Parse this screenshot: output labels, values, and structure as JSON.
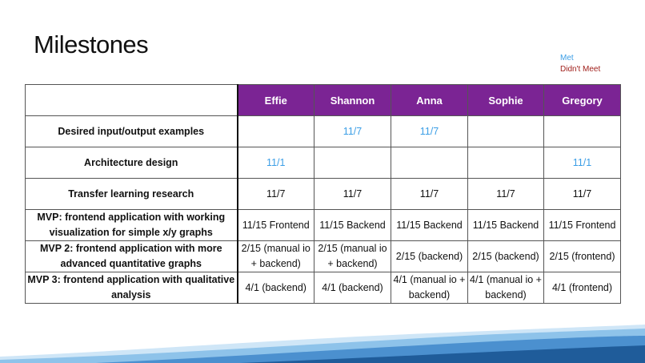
{
  "slide": {
    "title": "Milestones",
    "legend": {
      "met": "Met",
      "not_met": "Didn't Meet"
    }
  },
  "colors": {
    "header_bg": "#7b2494",
    "met": "#3b9ee6",
    "not_met": "#a0201c",
    "wave_dark": "#1f5c9a",
    "wave_light": "#8ec3ea"
  },
  "table": {
    "columns": [
      "Effie",
      "Shannon",
      "Anna",
      "Sophie",
      "Gregory"
    ],
    "rows": [
      {
        "label": "Desired input/output examples",
        "cells": [
          {
            "text": "",
            "status": "plain"
          },
          {
            "text": "11/7",
            "status": "met"
          },
          {
            "text": "11/7",
            "status": "met"
          },
          {
            "text": "",
            "status": "plain"
          },
          {
            "text": "",
            "status": "plain"
          }
        ]
      },
      {
        "label": "Architecture design",
        "cells": [
          {
            "text": "11/1",
            "status": "met"
          },
          {
            "text": "",
            "status": "plain"
          },
          {
            "text": "",
            "status": "plain"
          },
          {
            "text": "",
            "status": "plain"
          },
          {
            "text": "11/1",
            "status": "met"
          }
        ]
      },
      {
        "label": "Transfer learning research",
        "cells": [
          {
            "text": "11/7",
            "status": "plain"
          },
          {
            "text": "11/7",
            "status": "plain"
          },
          {
            "text": "11/7",
            "status": "plain"
          },
          {
            "text": "11/7",
            "status": "plain"
          },
          {
            "text": "11/7",
            "status": "plain"
          }
        ]
      },
      {
        "label": "MVP: frontend application with working visualization for simple x/y graphs",
        "cells": [
          {
            "text": "11/15 Frontend",
            "status": "plain"
          },
          {
            "text": "11/15 Backend",
            "status": "plain"
          },
          {
            "text": "11/15 Backend",
            "status": "plain"
          },
          {
            "text": "11/15 Backend",
            "status": "plain"
          },
          {
            "text": "11/15 Frontend",
            "status": "plain"
          }
        ]
      },
      {
        "label": "MVP 2: frontend application with more advanced quantitative graphs",
        "cells": [
          {
            "text": "2/15 (manual io + backend)",
            "status": "plain"
          },
          {
            "text": "2/15 (manual io + backend)",
            "status": "plain"
          },
          {
            "text": "2/15 (backend)",
            "status": "plain"
          },
          {
            "text": "2/15 (backend)",
            "status": "plain"
          },
          {
            "text": "2/15 (frontend)",
            "status": "plain"
          }
        ]
      },
      {
        "label": "MVP 3: frontend application with qualitative analysis",
        "cells": [
          {
            "text": "4/1 (backend)",
            "status": "plain"
          },
          {
            "text": "4/1 (backend)",
            "status": "plain"
          },
          {
            "text": "4/1 (manual io + backend)",
            "status": "plain"
          },
          {
            "text": "4/1 (manual io + backend)",
            "status": "plain"
          },
          {
            "text": "4/1 (frontend)",
            "status": "plain"
          }
        ]
      }
    ]
  }
}
